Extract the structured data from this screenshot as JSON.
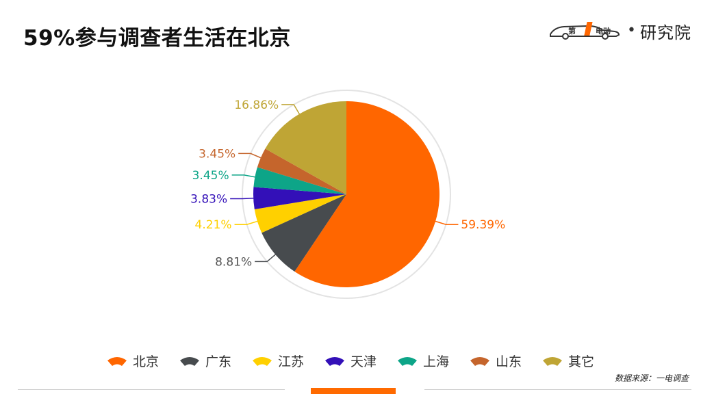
{
  "title": "59%参与调查者生活在北京",
  "brand": {
    "text": "研究院",
    "logo_icon": "diyi-diandong-car-logo-icon",
    "dot": "•"
  },
  "source": "数据来源：一电调查",
  "chart_data": {
    "type": "pie",
    "title": "",
    "slices": [
      {
        "name": "北京",
        "value": 59.39,
        "label": "59.39%",
        "color": "#ff6600"
      },
      {
        "name": "广东",
        "value": 8.81,
        "label": "8.81%",
        "color": "#474b4e"
      },
      {
        "name": "江苏",
        "value": 4.21,
        "label": "4.21%",
        "color": "#ffd000"
      },
      {
        "name": "天津",
        "value": 3.83,
        "label": "3.83%",
        "color": "#3310b8"
      },
      {
        "name": "上海",
        "value": 3.45,
        "label": "3.45%",
        "color": "#0da588"
      },
      {
        "name": "山东",
        "value": 3.45,
        "label": "3.45%",
        "color": "#c5652c"
      },
      {
        "name": "其它",
        "value": 16.86,
        "label": "16.86%",
        "color": "#bfa535"
      }
    ],
    "legend_position": "bottom",
    "start_angle": "12 o'clock, clockwise"
  }
}
